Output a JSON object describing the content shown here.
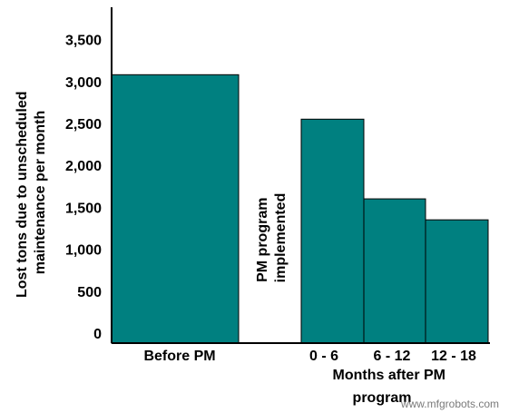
{
  "chart_data": {
    "type": "bar",
    "categories": [
      "Before PM",
      "0 - 6",
      "6 - 12",
      "12 - 18"
    ],
    "values": [
      3200,
      2670,
      1720,
      1470
    ],
    "ylabel_lines": [
      "Lost tons due to unscheduled",
      "maintenance per month"
    ],
    "xlabel_lines": [
      "Months after PM",
      "program"
    ],
    "annotation_lines": [
      "PM program",
      "implemented"
    ],
    "ylim": [
      0,
      3800
    ],
    "yticks": [
      0,
      500,
      1000,
      1500,
      2000,
      2500,
      3000,
      3500
    ],
    "ytick_labels": [
      "0",
      "500",
      "1,000",
      "1,500",
      "2,000",
      "2,500",
      "3,000",
      "3,500"
    ],
    "grid": false,
    "bar_color": "#008080"
  },
  "watermark": "www.mfgrobots.com"
}
